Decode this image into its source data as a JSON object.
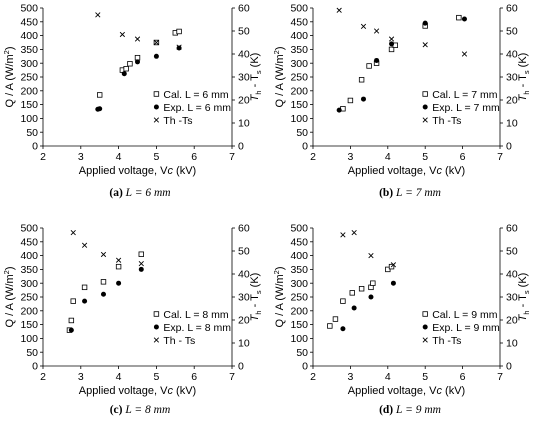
{
  "chart_data": [
    {
      "type": "scatter",
      "xlabel": "Applied voltage, V",
      "xlabel_sub": "c",
      "xlabel_unit": " (kV)",
      "ylabel": "Q / A (W/m",
      "ylabel_sup": "2",
      "ylabel_end": ")",
      "y2label_main": "T",
      "y2label_sub1": "h",
      "y2label_mid": " - T",
      "y2label_sub2": "s",
      "y2label_unit": " (K)",
      "xlim": [
        2,
        7
      ],
      "ylim": [
        0,
        500
      ],
      "y2lim": [
        0,
        60
      ],
      "xticks": [
        "2",
        "3",
        "4",
        "5",
        "6",
        "7"
      ],
      "yticks": [
        "0",
        "50",
        "100",
        "150",
        "200",
        "250",
        "300",
        "350",
        "400",
        "450",
        "500"
      ],
      "y2ticks": [
        "0",
        "10",
        "20",
        "30",
        "40",
        "50",
        "60"
      ],
      "legend": [
        "Cal. L = 6 mm",
        "Exp. L = 6 mm",
        "Th -Ts"
      ],
      "legend_position": "bottom-right",
      "caption_label": "(a)",
      "caption_text": "L = 6 mm",
      "series": [
        {
          "name": "Cal. L = 6 mm",
          "marker": "square",
          "axis": "left",
          "x": [
            3.5,
            4.1,
            4.2,
            4.3,
            4.5,
            5.0,
            5.5,
            5.6
          ],
          "y": [
            185,
            275,
            280,
            298,
            320,
            375,
            410,
            415
          ]
        },
        {
          "name": "Exp. L = 6 mm",
          "marker": "circle",
          "axis": "left",
          "x": [
            3.45,
            3.5,
            4.15,
            4.5,
            5.0,
            5.6
          ],
          "y": [
            133,
            135,
            262,
            305,
            325,
            355
          ]
        },
        {
          "name": "Th -Ts",
          "marker": "x",
          "axis": "right",
          "x": [
            3.45,
            4.1,
            4.5,
            5.0,
            5.6
          ],
          "y": [
            57,
            48.5,
            46.5,
            45,
            43
          ]
        }
      ]
    },
    {
      "type": "scatter",
      "xlabel": "Applied voltage, V",
      "xlabel_sub": "c",
      "xlabel_unit": " (kV)",
      "ylabel": "Q / A (W/m",
      "ylabel_sup": "2",
      "ylabel_end": ")",
      "y2label_main": "T",
      "y2label_sub1": "h",
      "y2label_mid": " - T",
      "y2label_sub2": "s",
      "y2label_unit": " (K)",
      "xlim": [
        2,
        7
      ],
      "ylim": [
        0,
        500
      ],
      "y2lim": [
        0,
        60
      ],
      "xticks": [
        "2",
        "3",
        "4",
        "5",
        "6",
        "7"
      ],
      "yticks": [
        "0",
        "50",
        "100",
        "150",
        "200",
        "250",
        "300",
        "350",
        "400",
        "450",
        "500"
      ],
      "y2ticks": [
        "0",
        "10",
        "20",
        "30",
        "40",
        "50",
        "60"
      ],
      "legend": [
        "Cal. L = 7 mm",
        "Exp. L = 7 mm",
        "Th -Ts"
      ],
      "legend_position": "bottom-right",
      "caption_label": "(b)",
      "caption_text": "L = 7 mm",
      "series": [
        {
          "name": "Cal. L = 7 mm",
          "marker": "square",
          "axis": "left",
          "x": [
            2.8,
            3.0,
            3.3,
            3.5,
            3.7,
            4.1,
            4.2,
            5.0,
            5.9
          ],
          "y": [
            135,
            165,
            240,
            290,
            300,
            350,
            365,
            435,
            465
          ]
        },
        {
          "name": "Exp. L = 7 mm",
          "marker": "circle",
          "axis": "left",
          "x": [
            2.7,
            3.35,
            3.7,
            4.1,
            5.0,
            6.05
          ],
          "y": [
            130,
            170,
            310,
            370,
            445,
            460
          ]
        },
        {
          "name": "Th -Ts",
          "marker": "x",
          "axis": "right",
          "x": [
            2.7,
            3.35,
            3.7,
            4.1,
            5.0,
            6.05
          ],
          "y": [
            59,
            52,
            50,
            46.5,
            44,
            40
          ]
        }
      ]
    },
    {
      "type": "scatter",
      "xlabel": "Applied voltage, V",
      "xlabel_sub": "c",
      "xlabel_unit": " (kV)",
      "ylabel": "Q / A (W/m",
      "ylabel_sup": "2",
      "ylabel_end": ")",
      "y2label_main": "T",
      "y2label_sub1": "h",
      "y2label_mid": " - T",
      "y2label_sub2": "s",
      "y2label_unit": " (K)",
      "xlim": [
        2,
        7
      ],
      "ylim": [
        0,
        500
      ],
      "y2lim": [
        0,
        60
      ],
      "xticks": [
        "2",
        "3",
        "4",
        "5",
        "6",
        "7"
      ],
      "yticks": [
        "0",
        "50",
        "100",
        "150",
        "200",
        "250",
        "300",
        "350",
        "400",
        "450",
        "500"
      ],
      "y2ticks": [
        "0",
        "10",
        "20",
        "30",
        "40",
        "50",
        "60"
      ],
      "legend": [
        "Cal. L = 8 mm",
        "Exp. L = 8 mm",
        "Th - Ts"
      ],
      "legend_position": "bottom-right",
      "caption_label": "(c)",
      "caption_text": "L = 8 mm",
      "series": [
        {
          "name": "Cal. L = 8 mm",
          "marker": "square",
          "axis": "left",
          "x": [
            2.7,
            2.75,
            2.8,
            3.1,
            3.6,
            4.0,
            4.6
          ],
          "y": [
            130,
            165,
            235,
            285,
            305,
            360,
            405
          ]
        },
        {
          "name": "Exp. L = 8 mm",
          "marker": "circle",
          "axis": "left",
          "x": [
            2.75,
            3.1,
            3.6,
            4.0,
            4.6
          ],
          "y": [
            130,
            235,
            260,
            300,
            350
          ]
        },
        {
          "name": "Th - Ts",
          "marker": "x",
          "axis": "right",
          "x": [
            2.8,
            3.1,
            3.6,
            4.0,
            4.6
          ],
          "y": [
            58,
            52.5,
            48.5,
            46,
            44.5
          ]
        }
      ]
    },
    {
      "type": "scatter",
      "xlabel": "Applied voltage, V",
      "xlabel_sub": "c",
      "xlabel_unit": " (kV)",
      "ylabel": "Q / A (W/m",
      "ylabel_sup": "2",
      "ylabel_end": ")",
      "y2label_main": "T",
      "y2label_sub1": "h",
      "y2label_mid": " - T",
      "y2label_sub2": "s",
      "y2label_unit": " (K)",
      "xlim": [
        2,
        7
      ],
      "ylim": [
        0,
        500
      ],
      "y2lim": [
        0,
        60
      ],
      "xticks": [
        "2",
        "3",
        "4",
        "5",
        "6",
        "7"
      ],
      "yticks": [
        "0",
        "50",
        "100",
        "150",
        "200",
        "250",
        "300",
        "350",
        "400",
        "450",
        "500"
      ],
      "y2ticks": [
        "0",
        "10",
        "20",
        "30",
        "40",
        "50",
        "60"
      ],
      "legend": [
        "Cal. L = 9 mm",
        "Exp. L = 9 mm",
        "Th -Ts"
      ],
      "legend_position": "bottom-right",
      "caption_label": "(d)",
      "caption_text": "L = 9 mm",
      "series": [
        {
          "name": "Cal. L = 9 mm",
          "marker": "square",
          "axis": "left",
          "x": [
            2.45,
            2.6,
            2.8,
            3.05,
            3.3,
            3.55,
            3.6,
            4.0,
            4.1
          ],
          "y": [
            145,
            170,
            235,
            265,
            280,
            285,
            300,
            350,
            360
          ]
        },
        {
          "name": "Exp. L = 9 mm",
          "marker": "circle",
          "axis": "left",
          "x": [
            2.8,
            3.1,
            3.55,
            4.15
          ],
          "y": [
            135,
            210,
            250,
            300
          ]
        },
        {
          "name": "Th -Ts",
          "marker": "x",
          "axis": "right",
          "x": [
            2.8,
            3.1,
            3.55,
            4.15
          ],
          "y": [
            57,
            58,
            48,
            44
          ]
        }
      ]
    }
  ]
}
